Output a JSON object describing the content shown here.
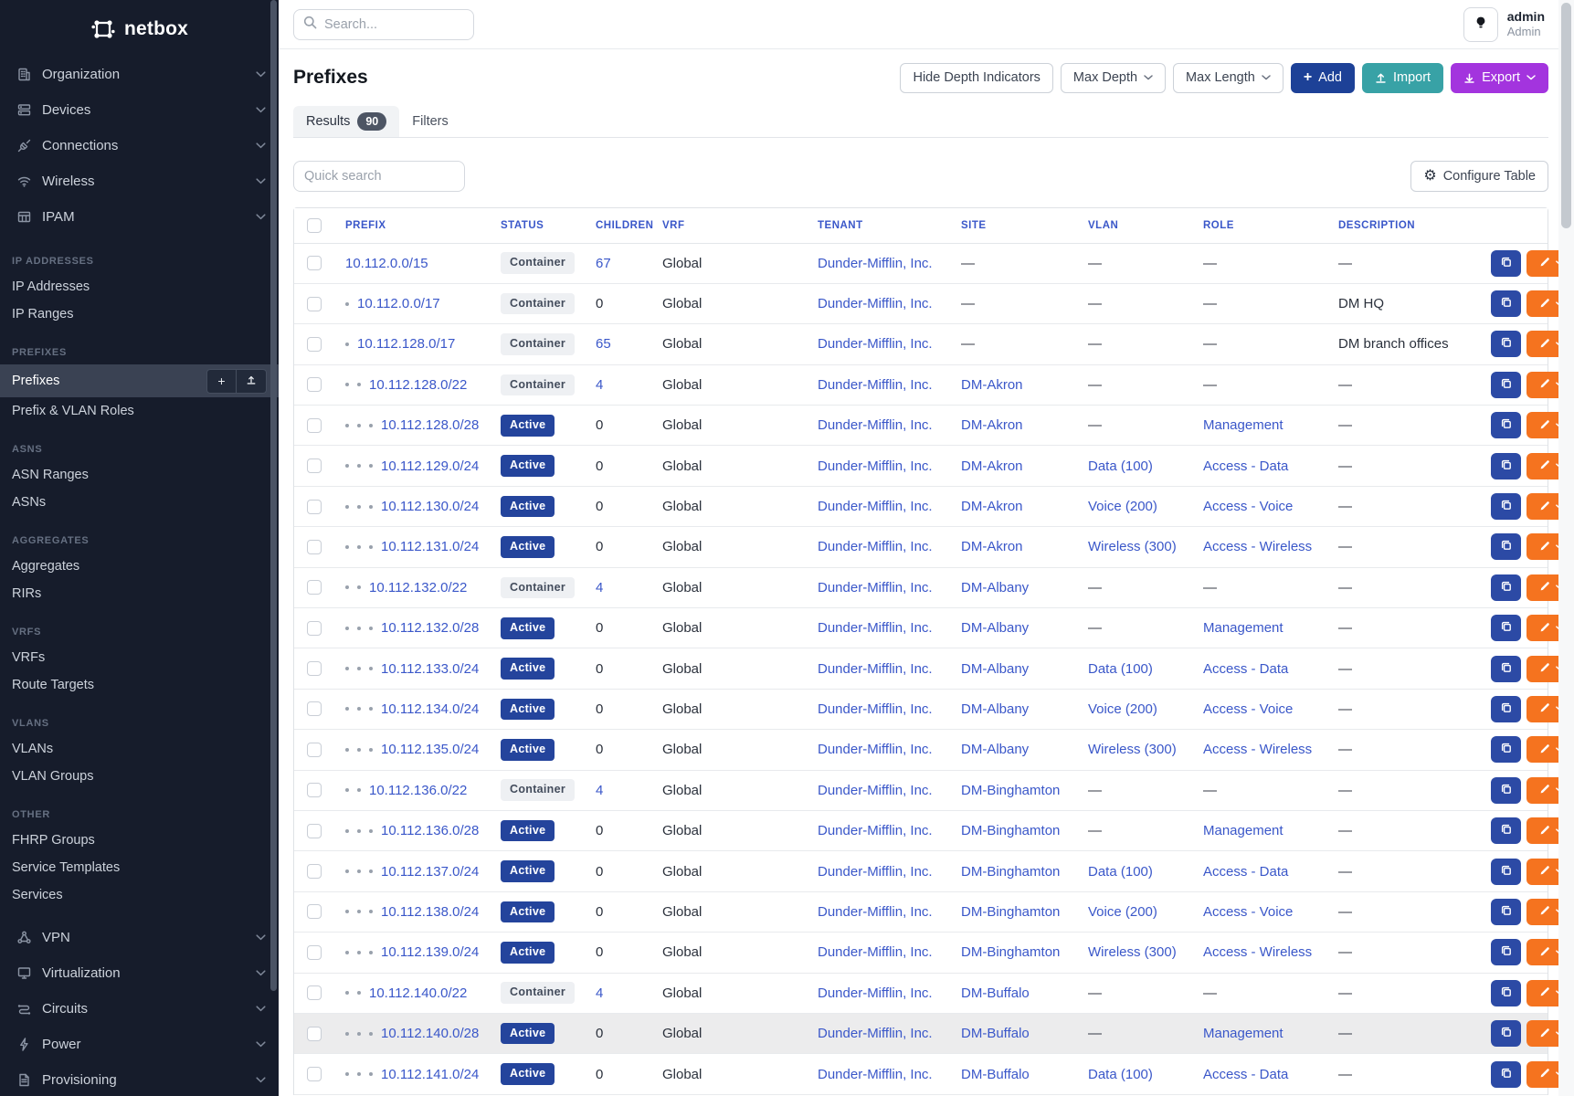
{
  "sidebar": {
    "logo_text": "netbox",
    "top_menus": [
      {
        "label": "Organization",
        "icon": "building-icon"
      },
      {
        "label": "Devices",
        "icon": "server-icon"
      },
      {
        "label": "Connections",
        "icon": "plug-icon"
      },
      {
        "label": "Wireless",
        "icon": "wifi-icon"
      },
      {
        "label": "IPAM",
        "icon": "ipam-grid-icon"
      }
    ],
    "sections": [
      {
        "title": "IP ADDRESSES",
        "items": [
          {
            "label": "IP Addresses"
          },
          {
            "label": "IP Ranges"
          }
        ]
      },
      {
        "title": "PREFIXES",
        "items": [
          {
            "label": "Prefixes",
            "active": true,
            "quick_actions": [
              "add",
              "import"
            ]
          },
          {
            "label": "Prefix & VLAN Roles"
          }
        ]
      },
      {
        "title": "ASNS",
        "items": [
          {
            "label": "ASN Ranges"
          },
          {
            "label": "ASNs"
          }
        ]
      },
      {
        "title": "AGGREGATES",
        "items": [
          {
            "label": "Aggregates"
          },
          {
            "label": "RIRs"
          }
        ]
      },
      {
        "title": "VRFS",
        "items": [
          {
            "label": "VRFs"
          },
          {
            "label": "Route Targets"
          }
        ]
      },
      {
        "title": "VLANS",
        "items": [
          {
            "label": "VLANs"
          },
          {
            "label": "VLAN Groups"
          }
        ]
      },
      {
        "title": "OTHER",
        "items": [
          {
            "label": "FHRP Groups"
          },
          {
            "label": "Service Templates"
          },
          {
            "label": "Services"
          }
        ]
      }
    ],
    "bottom_menus": [
      {
        "label": "VPN",
        "icon": "vpn-icon"
      },
      {
        "label": "Virtualization",
        "icon": "monitor-icon"
      },
      {
        "label": "Circuits",
        "icon": "circuits-icon"
      },
      {
        "label": "Power",
        "icon": "power-icon"
      },
      {
        "label": "Provisioning",
        "icon": "document-icon"
      }
    ]
  },
  "topbar": {
    "search_placeholder": "Search...",
    "user": {
      "username": "admin",
      "role": "Admin"
    }
  },
  "header": {
    "title": "Prefixes",
    "hide_depth_label": "Hide Depth Indicators",
    "max_depth_label": "Max Depth",
    "max_length_label": "Max Length",
    "add_label": "Add",
    "import_label": "Import",
    "export_label": "Export"
  },
  "tabs": {
    "results_label": "Results",
    "results_count": "90",
    "filters_label": "Filters"
  },
  "toolbar": {
    "quick_search_placeholder": "Quick search",
    "configure_table_label": "Configure Table"
  },
  "table": {
    "columns": [
      "Prefix",
      "Status",
      "Children",
      "VRF",
      "Tenant",
      "Site",
      "VLAN",
      "Role",
      "Description"
    ],
    "rows": [
      {
        "depth": 0,
        "prefix": "10.112.0.0/15",
        "status": "Container",
        "children": "67",
        "vrf": "Global",
        "tenant": "Dunder-Mifflin, Inc.",
        "site": "—",
        "vlan": "—",
        "role": "—",
        "description": "—"
      },
      {
        "depth": 1,
        "prefix": "10.112.0.0/17",
        "status": "Container",
        "children": "0",
        "vrf": "Global",
        "tenant": "Dunder-Mifflin, Inc.",
        "site": "—",
        "vlan": "—",
        "role": "—",
        "description": "DM HQ"
      },
      {
        "depth": 1,
        "prefix": "10.112.128.0/17",
        "status": "Container",
        "children": "65",
        "vrf": "Global",
        "tenant": "Dunder-Mifflin, Inc.",
        "site": "—",
        "vlan": "—",
        "role": "—",
        "description": "DM branch offices"
      },
      {
        "depth": 2,
        "prefix": "10.112.128.0/22",
        "status": "Container",
        "children": "4",
        "vrf": "Global",
        "tenant": "Dunder-Mifflin, Inc.",
        "site": "DM-Akron",
        "vlan": "—",
        "role": "—",
        "description": "—"
      },
      {
        "depth": 3,
        "prefix": "10.112.128.0/28",
        "status": "Active",
        "children": "0",
        "vrf": "Global",
        "tenant": "Dunder-Mifflin, Inc.",
        "site": "DM-Akron",
        "vlan": "—",
        "role": "Management",
        "description": "—"
      },
      {
        "depth": 3,
        "prefix": "10.112.129.0/24",
        "status": "Active",
        "children": "0",
        "vrf": "Global",
        "tenant": "Dunder-Mifflin, Inc.",
        "site": "DM-Akron",
        "vlan": "Data (100)",
        "role": "Access - Data",
        "description": "—"
      },
      {
        "depth": 3,
        "prefix": "10.112.130.0/24",
        "status": "Active",
        "children": "0",
        "vrf": "Global",
        "tenant": "Dunder-Mifflin, Inc.",
        "site": "DM-Akron",
        "vlan": "Voice (200)",
        "role": "Access - Voice",
        "description": "—"
      },
      {
        "depth": 3,
        "prefix": "10.112.131.0/24",
        "status": "Active",
        "children": "0",
        "vrf": "Global",
        "tenant": "Dunder-Mifflin, Inc.",
        "site": "DM-Akron",
        "vlan": "Wireless (300)",
        "role": "Access - Wireless",
        "description": "—"
      },
      {
        "depth": 2,
        "prefix": "10.112.132.0/22",
        "status": "Container",
        "children": "4",
        "vrf": "Global",
        "tenant": "Dunder-Mifflin, Inc.",
        "site": "DM-Albany",
        "vlan": "—",
        "role": "—",
        "description": "—"
      },
      {
        "depth": 3,
        "prefix": "10.112.132.0/28",
        "status": "Active",
        "children": "0",
        "vrf": "Global",
        "tenant": "Dunder-Mifflin, Inc.",
        "site": "DM-Albany",
        "vlan": "—",
        "role": "Management",
        "description": "—"
      },
      {
        "depth": 3,
        "prefix": "10.112.133.0/24",
        "status": "Active",
        "children": "0",
        "vrf": "Global",
        "tenant": "Dunder-Mifflin, Inc.",
        "site": "DM-Albany",
        "vlan": "Data (100)",
        "role": "Access - Data",
        "description": "—"
      },
      {
        "depth": 3,
        "prefix": "10.112.134.0/24",
        "status": "Active",
        "children": "0",
        "vrf": "Global",
        "tenant": "Dunder-Mifflin, Inc.",
        "site": "DM-Albany",
        "vlan": "Voice (200)",
        "role": "Access - Voice",
        "description": "—"
      },
      {
        "depth": 3,
        "prefix": "10.112.135.0/24",
        "status": "Active",
        "children": "0",
        "vrf": "Global",
        "tenant": "Dunder-Mifflin, Inc.",
        "site": "DM-Albany",
        "vlan": "Wireless (300)",
        "role": "Access - Wireless",
        "description": "—"
      },
      {
        "depth": 2,
        "prefix": "10.112.136.0/22",
        "status": "Container",
        "children": "4",
        "vrf": "Global",
        "tenant": "Dunder-Mifflin, Inc.",
        "site": "DM-Binghamton",
        "vlan": "—",
        "role": "—",
        "description": "—"
      },
      {
        "depth": 3,
        "prefix": "10.112.136.0/28",
        "status": "Active",
        "children": "0",
        "vrf": "Global",
        "tenant": "Dunder-Mifflin, Inc.",
        "site": "DM-Binghamton",
        "vlan": "—",
        "role": "Management",
        "description": "—"
      },
      {
        "depth": 3,
        "prefix": "10.112.137.0/24",
        "status": "Active",
        "children": "0",
        "vrf": "Global",
        "tenant": "Dunder-Mifflin, Inc.",
        "site": "DM-Binghamton",
        "vlan": "Data (100)",
        "role": "Access - Data",
        "description": "—"
      },
      {
        "depth": 3,
        "prefix": "10.112.138.0/24",
        "status": "Active",
        "children": "0",
        "vrf": "Global",
        "tenant": "Dunder-Mifflin, Inc.",
        "site": "DM-Binghamton",
        "vlan": "Voice (200)",
        "role": "Access - Voice",
        "description": "—"
      },
      {
        "depth": 3,
        "prefix": "10.112.139.0/24",
        "status": "Active",
        "children": "0",
        "vrf": "Global",
        "tenant": "Dunder-Mifflin, Inc.",
        "site": "DM-Binghamton",
        "vlan": "Wireless (300)",
        "role": "Access - Wireless",
        "description": "—"
      },
      {
        "depth": 2,
        "prefix": "10.112.140.0/22",
        "status": "Container",
        "children": "4",
        "vrf": "Global",
        "tenant": "Dunder-Mifflin, Inc.",
        "site": "DM-Buffalo",
        "vlan": "—",
        "role": "—",
        "description": "—"
      },
      {
        "depth": 3,
        "prefix": "10.112.140.0/28",
        "status": "Active",
        "children": "0",
        "vrf": "Global",
        "tenant": "Dunder-Mifflin, Inc.",
        "site": "DM-Buffalo",
        "vlan": "—",
        "role": "Management",
        "description": "—",
        "highlighted": true
      },
      {
        "depth": 3,
        "prefix": "10.112.141.0/24",
        "status": "Active",
        "children": "0",
        "vrf": "Global",
        "tenant": "Dunder-Mifflin, Inc.",
        "site": "DM-Buffalo",
        "vlan": "Data (100)",
        "role": "Access - Data",
        "description": "—"
      }
    ]
  },
  "colors": {
    "sidebar_bg": "#161c2b",
    "link": "#3a57c9",
    "active_badge": "#24449c",
    "container_badge_bg": "#eef0f3",
    "add_button": "#1d4197",
    "import_button": "#38a2a6",
    "export_button": "#a334de",
    "edit_button": "#f5731f",
    "copy_button": "#2c4aa5"
  }
}
